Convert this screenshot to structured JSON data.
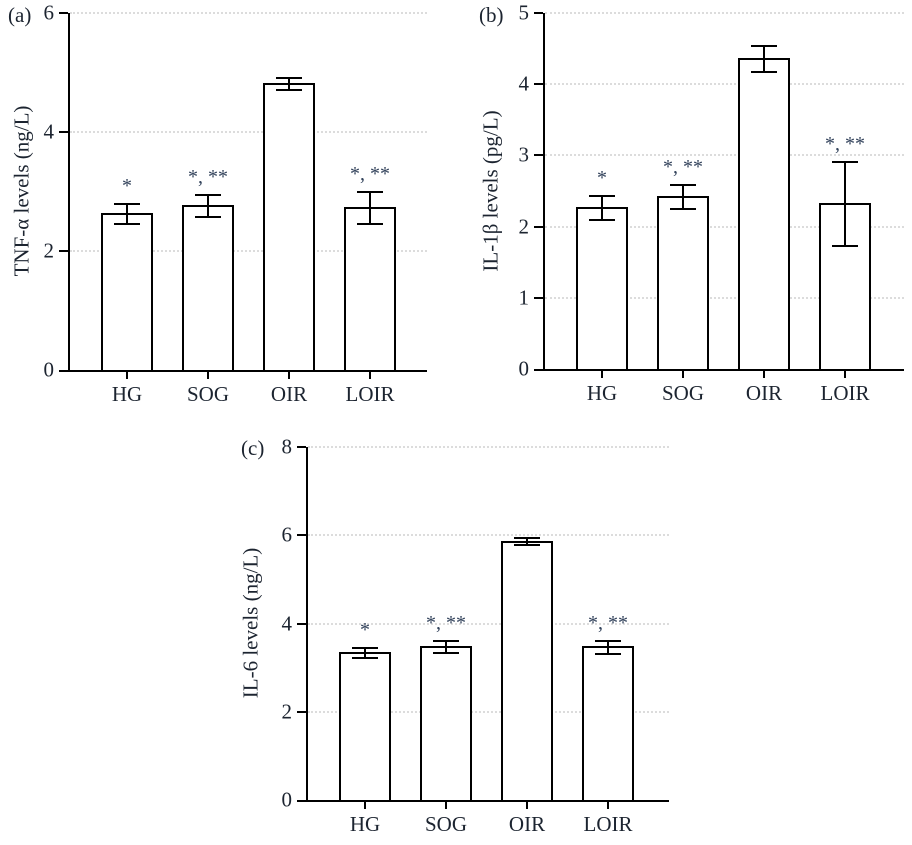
{
  "styles": {
    "text_color": "#1c2430",
    "annotation_color": "#31415a",
    "axis_color": "#000000",
    "grid_color": "#dcdcdc",
    "bar_fill": "#ffffff",
    "bar_edge": "#000000"
  },
  "chart_data": [
    {
      "type": "bar",
      "panel_label": "(a)",
      "title": "",
      "xlabel": "",
      "ylabel": "TNF-α levels (ng/L)",
      "categories": [
        "HG",
        "SOG",
        "OIR",
        "LOIR"
      ],
      "values": [
        2.64,
        2.77,
        4.83,
        2.74
      ],
      "errors": [
        0.17,
        0.18,
        0.1,
        0.27
      ],
      "significance": [
        "*",
        "*, **",
        "",
        "*, **"
      ],
      "ylim": [
        0,
        6
      ],
      "yticks": [
        0,
        2,
        4,
        6
      ],
      "grid": true,
      "legend": "none"
    },
    {
      "type": "bar",
      "panel_label": "(b)",
      "title": "",
      "xlabel": "",
      "ylabel": "IL-1β levels (pg/L)",
      "categories": [
        "HG",
        "SOG",
        "OIR",
        "LOIR"
      ],
      "values": [
        2.28,
        2.43,
        4.37,
        2.33
      ],
      "errors": [
        0.17,
        0.17,
        0.18,
        0.59
      ],
      "significance": [
        "*",
        "*, **",
        "",
        "*, **"
      ],
      "ylim": [
        0,
        5
      ],
      "yticks": [
        0,
        1,
        2,
        3,
        4,
        5
      ],
      "grid": true,
      "legend": "none"
    },
    {
      "type": "bar",
      "panel_label": "(c)",
      "title": "",
      "xlabel": "",
      "ylabel": "IL-6 levels (ng/L)",
      "categories": [
        "HG",
        "SOG",
        "OIR",
        "LOIR"
      ],
      "values": [
        3.36,
        3.49,
        5.88,
        3.48
      ],
      "errors": [
        0.11,
        0.14,
        0.07,
        0.14
      ],
      "significance": [
        "*",
        "*, **",
        "",
        "*, **"
      ],
      "ylim": [
        0,
        8
      ],
      "yticks": [
        0,
        2,
        4,
        6,
        8
      ],
      "grid": true,
      "legend": "none"
    }
  ]
}
